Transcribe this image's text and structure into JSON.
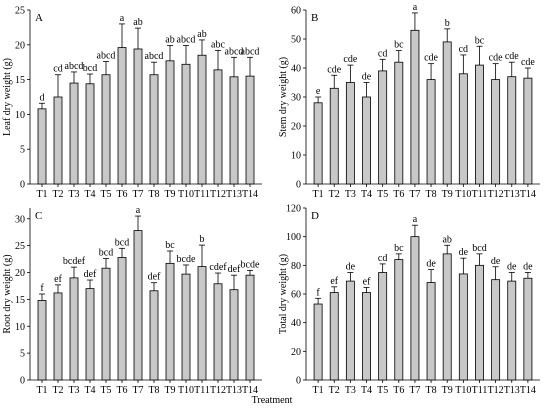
{
  "figure": {
    "xlabel": "Treatment"
  },
  "chart_data": [
    {
      "panel": "A",
      "type": "bar",
      "categories": [
        "T1",
        "T2",
        "T3",
        "T4",
        "T5",
        "T6",
        "T7",
        "T8",
        "T9",
        "T10",
        "T11",
        "T12",
        "T13",
        "T14"
      ],
      "values": [
        10.8,
        12.5,
        14.5,
        14.4,
        15.7,
        19.6,
        19.4,
        15.7,
        17.7,
        17.2,
        18.5,
        16.4,
        15.4,
        15.5
      ],
      "errors": [
        0.8,
        3.2,
        1.6,
        1.4,
        1.9,
        3.4,
        3.0,
        1.8,
        2.2,
        2.7,
        2.2,
        2.8,
        2.8,
        2.7
      ],
      "labels": [
        "d",
        "cd",
        "abcd",
        "bcd",
        "abcd",
        "a",
        "ab",
        "abcd",
        "ab",
        "abcd",
        "ab",
        "abc",
        "abcd",
        "abcd"
      ],
      "xlabel": "",
      "ylabel": "Leaf dry weight (g)",
      "ylim": [
        0,
        25
      ],
      "yticks": [
        0,
        5,
        10,
        15,
        20,
        25
      ],
      "grid": false
    },
    {
      "panel": "B",
      "type": "bar",
      "categories": [
        "T1",
        "T2",
        "T3",
        "T4",
        "T5",
        "T6",
        "T7",
        "T8",
        "T9",
        "T10",
        "T11",
        "T12",
        "T13",
        "T14"
      ],
      "values": [
        28,
        33,
        35,
        30,
        39,
        42,
        53,
        36,
        49,
        38,
        41,
        36,
        37,
        36.5
      ],
      "errors": [
        2,
        4.5,
        6,
        5,
        4,
        4,
        6,
        5.5,
        4.5,
        6.5,
        6.5,
        5.5,
        5,
        3.5
      ],
      "labels": [
        "e",
        "cde",
        "cde",
        "de",
        "cd",
        "bc",
        "a",
        "cde",
        "b",
        "cd",
        "bc",
        "cde",
        "cde",
        "cde"
      ],
      "xlabel": "",
      "ylabel": "Stem dry weight (g)",
      "ylim": [
        0,
        60
      ],
      "yticks": [
        0,
        10,
        20,
        30,
        40,
        50,
        60
      ],
      "grid": false
    },
    {
      "panel": "C",
      "type": "bar",
      "categories": [
        "T1",
        "T2",
        "T3",
        "T4",
        "T5",
        "T6",
        "T7",
        "T8",
        "T9",
        "T10",
        "T11",
        "T12",
        "T13",
        "T14"
      ],
      "values": [
        14.8,
        16.2,
        19.0,
        17.0,
        20.8,
        22.8,
        27.8,
        16.6,
        21.7,
        19.7,
        21.1,
        17.9,
        16.8,
        19.5
      ],
      "errors": [
        1.2,
        1.5,
        2.0,
        1.6,
        1.8,
        1.7,
        2.7,
        1.5,
        2.3,
        1.7,
        4.0,
        2.0,
        2.7,
        0.9
      ],
      "labels": [
        "f",
        "ef",
        "bcdef",
        "def",
        "bcd",
        "bcd",
        "a",
        "def",
        "bc",
        "bcde",
        "b",
        "cdef",
        "def",
        "bcde"
      ],
      "xlabel": "",
      "ylabel": "Root dry weight (g)",
      "ylim": [
        0,
        32
      ],
      "yticks": [
        0,
        5,
        10,
        15,
        20,
        25,
        30
      ],
      "grid": false
    },
    {
      "panel": "D",
      "type": "bar",
      "categories": [
        "T1",
        "T2",
        "T3",
        "T4",
        "T5",
        "T6",
        "T7",
        "T8",
        "T9",
        "T10",
        "T11",
        "T12",
        "T13",
        "T14"
      ],
      "values": [
        53,
        61,
        69,
        61,
        75,
        84,
        100,
        68,
        88,
        74,
        80,
        70,
        69,
        71
      ],
      "errors": [
        4,
        4,
        6,
        3.5,
        6,
        4,
        8,
        9,
        6,
        11,
        8,
        9,
        6,
        4
      ],
      "labels": [
        "f",
        "ef",
        "de",
        "ef",
        "cd",
        "bc",
        "a",
        "de",
        "ab",
        "de",
        "bcd",
        "de",
        "de",
        "de"
      ],
      "xlabel": "",
      "ylabel": "Total dry weight (g)",
      "ylim": [
        0,
        120
      ],
      "yticks": [
        0,
        20,
        40,
        60,
        80,
        100,
        120
      ],
      "grid": false
    }
  ]
}
